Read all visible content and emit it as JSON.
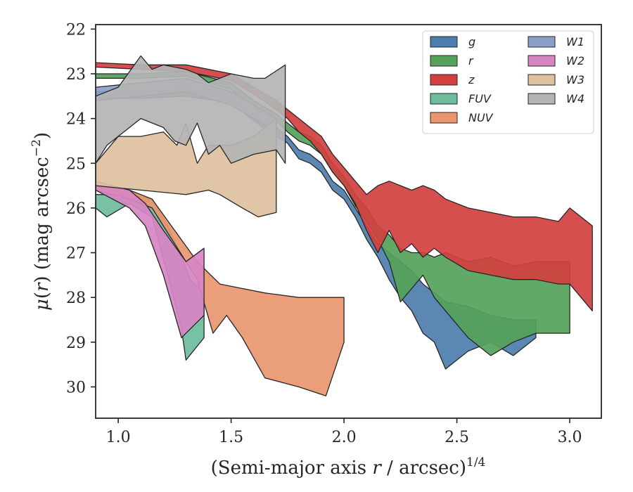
{
  "chart_data": {
    "type": "area",
    "xlabel": "(Semi-major axis r / arcsec)^{1/4}",
    "xlabel_parts": {
      "prefix": "(Semi-major axis ",
      "var": "r",
      "mid": " / arcsec)",
      "sup": "1/4"
    },
    "ylabel_parts": {
      "mu": "μ",
      "open": "(",
      "var": "r",
      "close": ") (mag arcsec",
      "sup": "−2",
      "end": ")"
    },
    "xlim": [
      0.9,
      3.14
    ],
    "ylim": [
      30.7,
      21.9
    ],
    "y_inverted": true,
    "xticks": [
      1.0,
      1.5,
      2.0,
      2.5,
      3.0
    ],
    "xtick_labels": [
      "1.0",
      "1.5",
      "2.0",
      "2.5",
      "3.0"
    ],
    "yticks": [
      22,
      23,
      24,
      25,
      26,
      27,
      28,
      29,
      30
    ],
    "ytick_labels": [
      "22",
      "23",
      "24",
      "25",
      "26",
      "27",
      "28",
      "29",
      "30"
    ],
    "grid": false,
    "legend_position": "top-right",
    "legend_columns": 2,
    "series": [
      {
        "name": "g",
        "color": "#4c7ead",
        "upper": [
          [
            0.9,
            23.4
          ],
          [
            1.1,
            23.4
          ],
          [
            1.3,
            23.3
          ],
          [
            1.5,
            23.5
          ],
          [
            1.6,
            23.9
          ],
          [
            1.7,
            24.2
          ],
          [
            1.75,
            24.4
          ],
          [
            1.8,
            24.7
          ],
          [
            1.85,
            24.8
          ],
          [
            1.9,
            25.0
          ],
          [
            1.95,
            25.4
          ],
          [
            2.0,
            25.6
          ],
          [
            2.05,
            26.0
          ],
          [
            2.1,
            26.4
          ],
          [
            2.15,
            26.8
          ],
          [
            2.2,
            27.0
          ],
          [
            2.25,
            27.2
          ],
          [
            2.3,
            27.4
          ],
          [
            2.35,
            27.7
          ],
          [
            2.4,
            27.9
          ],
          [
            2.45,
            28.1
          ],
          [
            2.55,
            28.2
          ],
          [
            2.65,
            28.4
          ],
          [
            2.75,
            28.5
          ],
          [
            2.85,
            28.5
          ]
        ],
        "lower": [
          [
            0.9,
            23.55
          ],
          [
            1.1,
            23.55
          ],
          [
            1.3,
            23.5
          ],
          [
            1.5,
            23.65
          ],
          [
            1.6,
            24.05
          ],
          [
            1.7,
            24.4
          ],
          [
            1.75,
            24.55
          ],
          [
            1.8,
            24.9
          ],
          [
            1.85,
            25.0
          ],
          [
            1.9,
            25.2
          ],
          [
            1.95,
            25.6
          ],
          [
            2.0,
            25.8
          ],
          [
            2.05,
            26.2
          ],
          [
            2.1,
            26.7
          ],
          [
            2.15,
            27.1
          ],
          [
            2.2,
            27.6
          ],
          [
            2.25,
            28.0
          ],
          [
            2.3,
            28.3
          ],
          [
            2.35,
            28.8
          ],
          [
            2.4,
            29.0
          ],
          [
            2.45,
            29.6
          ],
          [
            2.55,
            29.2
          ],
          [
            2.65,
            29.0
          ],
          [
            2.75,
            29.3
          ],
          [
            2.85,
            28.9
          ]
        ]
      },
      {
        "name": "r",
        "color": "#55a25a",
        "upper": [
          [
            0.9,
            23.0
          ],
          [
            1.1,
            23.0
          ],
          [
            1.3,
            22.95
          ],
          [
            1.5,
            23.2
          ],
          [
            1.6,
            23.6
          ],
          [
            1.7,
            23.9
          ],
          [
            1.75,
            24.1
          ],
          [
            1.8,
            24.3
          ],
          [
            1.85,
            24.4
          ],
          [
            1.9,
            24.6
          ],
          [
            1.95,
            25.0
          ],
          [
            2.0,
            25.3
          ],
          [
            2.05,
            25.7
          ],
          [
            2.1,
            26.0
          ],
          [
            2.15,
            26.4
          ],
          [
            2.2,
            26.6
          ],
          [
            2.25,
            26.9
          ],
          [
            2.3,
            27.0
          ],
          [
            2.35,
            27.0
          ],
          [
            2.4,
            27.1
          ],
          [
            2.45,
            27.0
          ],
          [
            2.55,
            27.2
          ],
          [
            2.65,
            27.1
          ],
          [
            2.75,
            27.3
          ],
          [
            2.85,
            27.2
          ],
          [
            3.0,
            27.2
          ]
        ],
        "lower": [
          [
            0.9,
            23.1
          ],
          [
            1.1,
            23.1
          ],
          [
            1.3,
            23.05
          ],
          [
            1.5,
            23.35
          ],
          [
            1.6,
            23.75
          ],
          [
            1.7,
            24.05
          ],
          [
            1.75,
            24.3
          ],
          [
            1.8,
            24.5
          ],
          [
            1.85,
            24.6
          ],
          [
            1.9,
            24.8
          ],
          [
            1.95,
            25.2
          ],
          [
            2.0,
            25.5
          ],
          [
            2.05,
            25.95
          ],
          [
            2.1,
            26.3
          ],
          [
            2.15,
            26.7
          ],
          [
            2.2,
            27.2
          ],
          [
            2.25,
            28.1
          ],
          [
            2.3,
            27.8
          ],
          [
            2.35,
            27.5
          ],
          [
            2.4,
            28.0
          ],
          [
            2.45,
            28.3
          ],
          [
            2.55,
            28.9
          ],
          [
            2.65,
            29.3
          ],
          [
            2.75,
            29.0
          ],
          [
            2.85,
            28.8
          ],
          [
            3.0,
            28.8
          ]
        ]
      },
      {
        "name": "z",
        "color": "#d1403f",
        "upper": [
          [
            0.9,
            22.75
          ],
          [
            1.1,
            22.8
          ],
          [
            1.3,
            22.8
          ],
          [
            1.5,
            23.0
          ],
          [
            1.6,
            23.3
          ],
          [
            1.7,
            23.6
          ],
          [
            1.75,
            23.8
          ],
          [
            1.8,
            24.0
          ],
          [
            1.85,
            24.2
          ],
          [
            1.9,
            24.4
          ],
          [
            1.95,
            24.8
          ],
          [
            2.0,
            25.1
          ],
          [
            2.05,
            25.4
          ],
          [
            2.1,
            25.7
          ],
          [
            2.15,
            25.5
          ],
          [
            2.2,
            25.4
          ],
          [
            2.25,
            25.5
          ],
          [
            2.3,
            25.6
          ],
          [
            2.35,
            25.5
          ],
          [
            2.4,
            25.6
          ],
          [
            2.45,
            25.8
          ],
          [
            2.55,
            26.0
          ],
          [
            2.65,
            26.1
          ],
          [
            2.75,
            26.2
          ],
          [
            2.85,
            26.2
          ],
          [
            2.95,
            26.3
          ],
          [
            3.0,
            26.0
          ],
          [
            3.1,
            26.4
          ]
        ],
        "lower": [
          [
            0.9,
            22.85
          ],
          [
            1.1,
            22.9
          ],
          [
            1.3,
            22.95
          ],
          [
            1.5,
            23.15
          ],
          [
            1.6,
            23.45
          ],
          [
            1.7,
            23.8
          ],
          [
            1.75,
            24.0
          ],
          [
            1.8,
            24.3
          ],
          [
            1.85,
            24.5
          ],
          [
            1.9,
            24.8
          ],
          [
            1.95,
            25.2
          ],
          [
            2.0,
            25.5
          ],
          [
            2.05,
            25.9
          ],
          [
            2.1,
            26.5
          ],
          [
            2.15,
            27.0
          ],
          [
            2.2,
            26.5
          ],
          [
            2.25,
            27.0
          ],
          [
            2.3,
            26.8
          ],
          [
            2.35,
            27.1
          ],
          [
            2.4,
            26.9
          ],
          [
            2.45,
            27.1
          ],
          [
            2.55,
            27.4
          ],
          [
            2.65,
            27.5
          ],
          [
            2.75,
            27.6
          ],
          [
            2.85,
            27.6
          ],
          [
            2.95,
            27.7
          ],
          [
            3.0,
            27.7
          ],
          [
            3.1,
            28.3
          ]
        ]
      },
      {
        "name": "FUV",
        "color": "#6ebc9c",
        "upper": [
          [
            0.9,
            25.7
          ],
          [
            1.05,
            25.7
          ],
          [
            1.15,
            25.8
          ],
          [
            1.22,
            26.4
          ],
          [
            1.28,
            27.1
          ],
          [
            1.32,
            27.6
          ],
          [
            1.38,
            27.9
          ]
        ],
        "lower": [
          [
            0.9,
            26.0
          ],
          [
            0.95,
            26.2
          ],
          [
            1.05,
            25.9
          ],
          [
            1.15,
            26.2
          ],
          [
            1.22,
            27.5
          ],
          [
            1.28,
            28.7
          ],
          [
            1.3,
            29.4
          ],
          [
            1.38,
            28.9
          ]
        ]
      },
      {
        "name": "NUV",
        "color": "#e9966f",
        "upper": [
          [
            0.9,
            25.5
          ],
          [
            1.05,
            25.6
          ],
          [
            1.15,
            25.8
          ],
          [
            1.25,
            26.5
          ],
          [
            1.35,
            27.2
          ],
          [
            1.45,
            27.7
          ],
          [
            1.55,
            27.8
          ],
          [
            1.65,
            27.9
          ],
          [
            1.8,
            28.0
          ],
          [
            2.0,
            28.0
          ]
        ],
        "lower": [
          [
            0.9,
            25.6
          ],
          [
            1.05,
            25.8
          ],
          [
            1.15,
            26.0
          ],
          [
            1.25,
            26.8
          ],
          [
            1.35,
            27.6
          ],
          [
            1.42,
            28.8
          ],
          [
            1.48,
            28.4
          ],
          [
            1.55,
            28.9
          ],
          [
            1.65,
            29.8
          ],
          [
            1.8,
            30.0
          ],
          [
            1.92,
            30.2
          ],
          [
            2.0,
            29.0
          ]
        ]
      },
      {
        "name": "W1",
        "color": "#8c9fc8",
        "upper": [
          [
            0.9,
            23.3
          ],
          [
            1.1,
            23.2
          ],
          [
            1.3,
            23.1
          ],
          [
            1.5,
            23.4
          ],
          [
            1.6,
            23.7
          ],
          [
            1.7,
            24.0
          ]
        ],
        "lower": [
          [
            0.9,
            23.6
          ],
          [
            1.1,
            23.5
          ],
          [
            1.3,
            23.4
          ],
          [
            1.5,
            23.7
          ],
          [
            1.6,
            24.0
          ],
          [
            1.7,
            24.3
          ]
        ]
      },
      {
        "name": "W2",
        "color": "#d886c3",
        "upper": [
          [
            0.9,
            25.4
          ],
          [
            1.05,
            25.6
          ],
          [
            1.12,
            25.9
          ],
          [
            1.2,
            26.5
          ],
          [
            1.3,
            27.2
          ],
          [
            1.38,
            26.9
          ]
        ],
        "lower": [
          [
            0.9,
            25.6
          ],
          [
            1.05,
            26.0
          ],
          [
            1.12,
            26.4
          ],
          [
            1.2,
            27.5
          ],
          [
            1.28,
            28.9
          ],
          [
            1.38,
            28.4
          ]
        ]
      },
      {
        "name": "W3",
        "color": "#ddc1a0",
        "upper": [
          [
            0.9,
            25.0
          ],
          [
            1.0,
            24.4
          ],
          [
            1.1,
            24.4
          ],
          [
            1.2,
            24.3
          ],
          [
            1.26,
            24.6
          ],
          [
            1.3,
            24.1
          ],
          [
            1.35,
            25.0
          ],
          [
            1.4,
            24.6
          ],
          [
            1.5,
            24.6
          ],
          [
            1.6,
            24.4
          ],
          [
            1.7,
            24.0
          ]
        ],
        "lower": [
          [
            0.9,
            25.5
          ],
          [
            1.1,
            25.6
          ],
          [
            1.3,
            25.7
          ],
          [
            1.4,
            25.6
          ],
          [
            1.45,
            25.7
          ],
          [
            1.55,
            26.0
          ],
          [
            1.62,
            26.2
          ],
          [
            1.7,
            26.1
          ]
        ]
      },
      {
        "name": "W4",
        "color": "#b4b4b4",
        "upper": [
          [
            0.9,
            23.5
          ],
          [
            1.0,
            23.3
          ],
          [
            1.1,
            22.6
          ],
          [
            1.15,
            22.9
          ],
          [
            1.2,
            22.8
          ],
          [
            1.3,
            22.9
          ],
          [
            1.35,
            23.0
          ],
          [
            1.4,
            23.2
          ],
          [
            1.5,
            23.0
          ],
          [
            1.6,
            23.1
          ],
          [
            1.65,
            23.1
          ],
          [
            1.68,
            23.0
          ],
          [
            1.74,
            22.8
          ]
        ],
        "lower": [
          [
            0.9,
            25.0
          ],
          [
            0.95,
            24.6
          ],
          [
            1.05,
            24.2
          ],
          [
            1.1,
            24.0
          ],
          [
            1.2,
            24.2
          ],
          [
            1.25,
            24.5
          ],
          [
            1.3,
            24.6
          ],
          [
            1.35,
            24.1
          ],
          [
            1.4,
            24.8
          ],
          [
            1.45,
            24.6
          ],
          [
            1.5,
            25.0
          ],
          [
            1.6,
            24.8
          ],
          [
            1.7,
            24.7
          ],
          [
            1.74,
            25.0
          ]
        ]
      }
    ]
  }
}
